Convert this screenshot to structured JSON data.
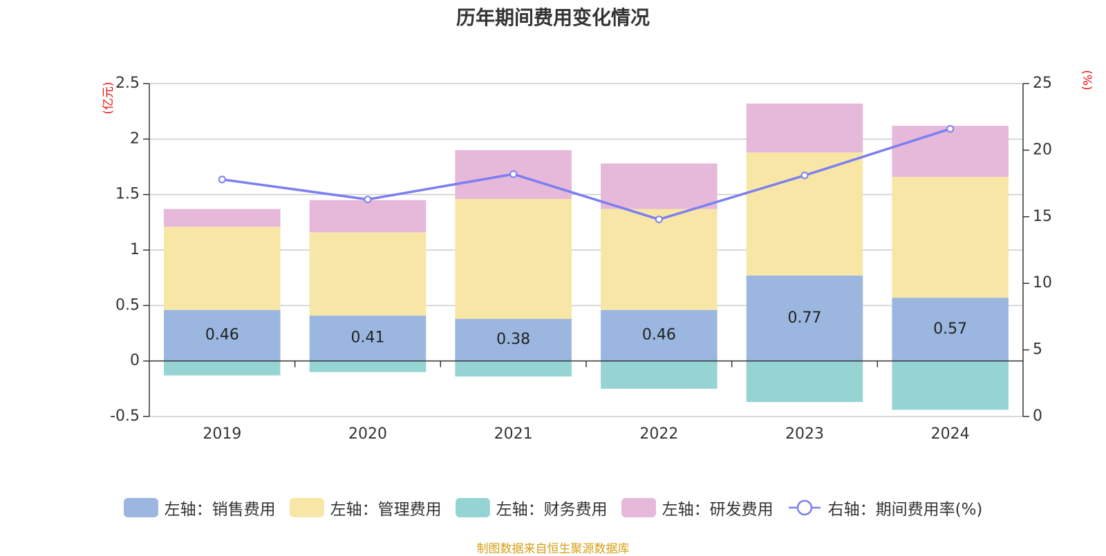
{
  "title": "历年期间费用变化情况",
  "source_note": "制图数据来自恒生聚源数据库",
  "colors": {
    "sales": "#9bb7e0",
    "admin": "#f7e6a6",
    "finance": "#96d4d4",
    "rd": "#e6b8d9",
    "rate_line": "#7b7ff0",
    "axis_unit": "#e8140f",
    "grid": "#cccccc",
    "axis": "#333333",
    "text": "#333333",
    "source": "#d4a017"
  },
  "chart_data": {
    "type": "bar",
    "stacked": true,
    "categories": [
      "2019",
      "2020",
      "2021",
      "2022",
      "2023",
      "2024"
    ],
    "y_left": {
      "unit": "(亿元)",
      "ylim": [
        -0.5,
        2.5
      ],
      "ticks": [
        -0.5,
        0,
        0.5,
        1,
        1.5,
        2,
        2.5
      ]
    },
    "y_right": {
      "unit": "(%)",
      "ylim": [
        0,
        25
      ],
      "ticks": [
        0,
        5,
        10,
        15,
        20,
        25
      ]
    },
    "series": [
      {
        "key": "sales",
        "name": "左轴：销售费用",
        "type": "bar",
        "axis": "left",
        "values": [
          0.46,
          0.41,
          0.38,
          0.46,
          0.77,
          0.57
        ],
        "show_labels": true
      },
      {
        "key": "admin",
        "name": "左轴：管理费用",
        "type": "bar",
        "axis": "left",
        "values": [
          0.75,
          0.75,
          1.08,
          0.91,
          1.11,
          1.09
        ]
      },
      {
        "key": "finance",
        "name": "左轴：财务费用",
        "type": "bar",
        "axis": "left",
        "values": [
          -0.13,
          -0.1,
          -0.14,
          -0.25,
          -0.37,
          -0.44
        ]
      },
      {
        "key": "rd",
        "name": "左轴：研发费用",
        "type": "bar",
        "axis": "left",
        "values": [
          0.16,
          0.29,
          0.44,
          0.41,
          0.44,
          0.46
        ]
      },
      {
        "key": "rate_line",
        "name": "右轴：期间费用率(%)",
        "type": "line",
        "axis": "right",
        "values": [
          17.8,
          16.3,
          18.2,
          14.8,
          18.1,
          21.6
        ]
      }
    ],
    "grid": true,
    "legend_position": "bottom"
  }
}
